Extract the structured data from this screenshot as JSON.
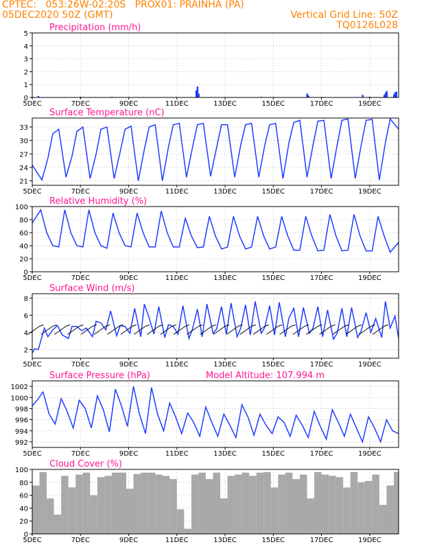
{
  "header": {
    "line1_left": "CPTEC:   053:26W-02:20S   PROX01: PRAINHA (PA)",
    "line2_left": "05DEC2020 50Z (GMT)",
    "line2_right": "Vertical Grid Line: 50Z",
    "line3_right": "TQ0126L028"
  },
  "colors": {
    "header": "#ff8000",
    "title": "#ff1493",
    "series": "#1e3cff",
    "wind_barb": "#000000",
    "cloud": "#a9a9a9"
  },
  "x_axis": {
    "ticks": [
      "5DEC",
      "7DEC",
      "9DEC",
      "11DEC",
      "13DEC",
      "15DEC",
      "17DEC",
      "19DEC"
    ],
    "tick_days": [
      0,
      2,
      4,
      6,
      8,
      10,
      12,
      14
    ],
    "range_days": [
      0,
      15.2
    ]
  },
  "chart_data": [
    {
      "type": "bar",
      "title": "Precipitation (mm/h)",
      "ylim": [
        0,
        5
      ],
      "yticks": [
        "0",
        "1",
        "2",
        "3",
        "4",
        "5"
      ],
      "grid": true,
      "x_days": [
        0.25,
        2.0,
        3.3,
        6.8,
        6.85,
        6.9,
        9.5,
        11.4,
        11.45,
        13.7,
        14.0,
        14.6,
        14.65,
        14.7,
        15.0,
        15.05,
        15.1
      ],
      "values": [
        0.1,
        0.05,
        0.05,
        0.55,
        0.85,
        0.3,
        0.05,
        0.3,
        0.15,
        0.2,
        0.05,
        0.2,
        0.35,
        0.5,
        0.25,
        0.4,
        0.45
      ]
    },
    {
      "type": "line",
      "title": "Surface Temperature (nC)",
      "ylim": [
        20,
        35
      ],
      "yticks": [
        "21",
        "24",
        "27",
        "30",
        "33"
      ],
      "grid": true,
      "series": [
        {
          "x_days": [
            0,
            0.4,
            0.65,
            0.85,
            1.1,
            1.4,
            1.65,
            1.85,
            2.1,
            2.4,
            2.65,
            2.85,
            3.1,
            3.4,
            3.65,
            3.85,
            4.1,
            4.4,
            4.65,
            4.85,
            5.1,
            5.4,
            5.65,
            5.85,
            6.1,
            6.4,
            6.65,
            6.85,
            7.1,
            7.4,
            7.65,
            7.85,
            8.1,
            8.4,
            8.65,
            8.85,
            9.1,
            9.4,
            9.65,
            9.85,
            10.1,
            10.4,
            10.65,
            10.85,
            11.1,
            11.4,
            11.65,
            11.85,
            12.1,
            12.4,
            12.65,
            12.85,
            13.1,
            13.4,
            13.65,
            13.85,
            14.1,
            14.4,
            14.65,
            14.85,
            15.2
          ],
          "values": [
            24.5,
            21.2,
            26.0,
            31.5,
            32.5,
            21.8,
            26.5,
            32.0,
            33.0,
            21.5,
            27.0,
            32.5,
            33.0,
            21.5,
            27.5,
            32.5,
            33.2,
            21.0,
            28.0,
            33.0,
            33.5,
            21.0,
            28.5,
            33.5,
            33.8,
            21.8,
            28.5,
            33.5,
            33.8,
            22.0,
            28.5,
            33.5,
            33.5,
            21.8,
            29.0,
            33.5,
            33.8,
            21.8,
            29.0,
            33.5,
            33.8,
            21.5,
            29.5,
            34.0,
            34.5,
            21.8,
            29.0,
            34.3,
            34.5,
            21.5,
            29.0,
            34.5,
            34.8,
            21.5,
            29.0,
            34.5,
            34.7,
            21.2,
            29.5,
            34.8,
            32.5
          ]
        }
      ]
    },
    {
      "type": "line",
      "title": "Relative Humidity (%)",
      "ylim": [
        0,
        100
      ],
      "yticks": [
        "0",
        "20",
        "40",
        "60",
        "80",
        "100"
      ],
      "grid": true,
      "series": [
        {
          "x_days": [
            0,
            0.35,
            0.6,
            0.85,
            1.1,
            1.35,
            1.6,
            1.85,
            2.1,
            2.35,
            2.6,
            2.85,
            3.1,
            3.35,
            3.6,
            3.85,
            4.1,
            4.35,
            4.6,
            4.85,
            5.1,
            5.35,
            5.6,
            5.85,
            6.1,
            6.35,
            6.6,
            6.85,
            7.1,
            7.35,
            7.6,
            7.85,
            8.1,
            8.35,
            8.6,
            8.85,
            9.1,
            9.35,
            9.6,
            9.85,
            10.1,
            10.35,
            10.6,
            10.85,
            11.1,
            11.35,
            11.6,
            11.85,
            12.1,
            12.35,
            12.6,
            12.85,
            13.1,
            13.35,
            13.6,
            13.85,
            14.1,
            14.35,
            14.6,
            14.85,
            15.2
          ],
          "values": [
            75,
            95,
            60,
            40,
            38,
            95,
            60,
            40,
            38,
            95,
            60,
            40,
            36,
            90,
            60,
            40,
            38,
            90,
            60,
            38,
            38,
            93,
            60,
            38,
            38,
            82,
            55,
            37,
            38,
            85,
            55,
            35,
            38,
            85,
            55,
            35,
            38,
            85,
            55,
            35,
            38,
            85,
            55,
            33,
            33,
            85,
            55,
            32,
            33,
            88,
            55,
            32,
            33,
            88,
            55,
            32,
            32,
            85,
            55,
            30,
            45
          ]
        }
      ]
    },
    {
      "type": "line",
      "title": "Surface Wind (m/s)",
      "ylim": [
        1,
        8.5
      ],
      "yticks": [
        "2",
        "4",
        "6",
        "8"
      ],
      "grid": true,
      "wind_barbs": true,
      "series": [
        {
          "x_days": [
            0,
            0.1,
            0.25,
            0.5,
            0.65,
            0.85,
            1.05,
            1.25,
            1.5,
            1.65,
            1.85,
            2.05,
            2.25,
            2.5,
            2.65,
            2.85,
            3.05,
            3.25,
            3.5,
            3.65,
            3.85,
            4.05,
            4.25,
            4.5,
            4.65,
            4.85,
            5.05,
            5.25,
            5.5,
            5.65,
            5.85,
            6.05,
            6.25,
            6.5,
            6.65,
            6.85,
            7.05,
            7.25,
            7.5,
            7.65,
            7.85,
            8.05,
            8.25,
            8.5,
            8.65,
            8.85,
            9.05,
            9.25,
            9.5,
            9.65,
            9.85,
            10.05,
            10.25,
            10.5,
            10.65,
            10.85,
            11.05,
            11.25,
            11.5,
            11.65,
            11.85,
            12.05,
            12.25,
            12.5,
            12.65,
            12.85,
            13.05,
            13.25,
            13.5,
            13.65,
            13.85,
            14.05,
            14.25,
            14.5,
            14.65,
            14.85,
            15.05,
            15.2
          ],
          "values": [
            1.6,
            2.1,
            2.0,
            4.5,
            3.5,
            4.3,
            4.8,
            3.7,
            3.3,
            4.7,
            4.7,
            4.2,
            4.5,
            3.5,
            5.3,
            5.1,
            4.3,
            6.5,
            3.6,
            4.8,
            4.7,
            3.9,
            6.8,
            3.5,
            7.3,
            5.7,
            3.8,
            7.0,
            3.4,
            4.9,
            4.7,
            3.8,
            7.1,
            3.3,
            4.4,
            6.7,
            3.5,
            7.3,
            3.9,
            4.4,
            7.0,
            3.8,
            7.4,
            3.5,
            4.5,
            7.2,
            3.7,
            7.6,
            3.9,
            4.6,
            7.1,
            3.7,
            7.5,
            3.5,
            5.7,
            6.8,
            3.5,
            6.9,
            3.9,
            4.5,
            7.0,
            3.5,
            6.6,
            3.2,
            3.9,
            6.8,
            3.5,
            6.9,
            3.4,
            4.2,
            6.3,
            4.0,
            5.6,
            3.4,
            7.6,
            4.5,
            5.9,
            3.3
          ]
        }
      ]
    },
    {
      "type": "line",
      "title": "Surface Pressure (hPa)",
      "annotation": "Model Altitude: 107.994 m",
      "ylim": [
        991,
        1003
      ],
      "yticks": [
        "992",
        "994",
        "996",
        "998",
        "1000",
        "1002"
      ],
      "grid": true,
      "series": [
        {
          "x_days": [
            0,
            0.2,
            0.45,
            0.7,
            0.95,
            1.2,
            1.45,
            1.7,
            1.95,
            2.2,
            2.45,
            2.7,
            2.95,
            3.2,
            3.45,
            3.7,
            3.95,
            4.2,
            4.45,
            4.7,
            4.95,
            5.2,
            5.45,
            5.7,
            5.95,
            6.2,
            6.45,
            6.7,
            6.95,
            7.2,
            7.45,
            7.7,
            7.95,
            8.2,
            8.45,
            8.7,
            8.95,
            9.2,
            9.45,
            9.7,
            9.95,
            10.2,
            10.45,
            10.7,
            10.95,
            11.2,
            11.45,
            11.7,
            11.95,
            12.2,
            12.45,
            12.7,
            12.95,
            13.2,
            13.45,
            13.7,
            13.95,
            14.2,
            14.45,
            14.7,
            14.95,
            15.2
          ],
          "values": [
            998.5,
            999.5,
            1001.0,
            997.0,
            995.2,
            999.8,
            997.5,
            994.5,
            999.5,
            998.0,
            994.5,
            1000.3,
            997.8,
            993.8,
            1001.5,
            998.5,
            994.8,
            1002.0,
            997.0,
            993.5,
            1001.8,
            997.0,
            994.0,
            999.0,
            996.5,
            993.5,
            997.2,
            995.5,
            993.0,
            998.3,
            995.5,
            993.0,
            997.0,
            995.0,
            992.8,
            998.7,
            996.5,
            993.2,
            997.0,
            995.0,
            993.5,
            996.5,
            995.5,
            993.0,
            996.8,
            995.0,
            992.8,
            997.5,
            994.8,
            992.5,
            997.8,
            995.5,
            993.0,
            997.0,
            994.5,
            992.0,
            996.5,
            994.5,
            992.0,
            996.0,
            994.0,
            993.5
          ]
        }
      ]
    },
    {
      "type": "area",
      "title": "Cloud Cover (%)",
      "ylim": [
        0,
        100
      ],
      "yticks": [
        "0",
        "20",
        "40",
        "60",
        "80",
        "100"
      ],
      "grid": true,
      "x_days": [
        0,
        0.3,
        0.6,
        0.9,
        1.2,
        1.5,
        1.8,
        2.1,
        2.4,
        2.7,
        3.0,
        3.3,
        3.6,
        3.9,
        4.2,
        4.5,
        4.8,
        5.1,
        5.4,
        5.7,
        6.0,
        6.3,
        6.6,
        6.9,
        7.2,
        7.5,
        7.8,
        8.1,
        8.4,
        8.7,
        9.0,
        9.3,
        9.6,
        9.9,
        10.2,
        10.5,
        10.8,
        11.1,
        11.4,
        11.7,
        12.0,
        12.3,
        12.6,
        12.9,
        13.2,
        13.5,
        13.8,
        14.1,
        14.4,
        14.7,
        15.0
      ],
      "values": [
        75,
        96,
        55,
        30,
        90,
        72,
        92,
        95,
        60,
        88,
        90,
        95,
        95,
        70,
        93,
        95,
        95,
        92,
        90,
        85,
        38,
        8,
        92,
        95,
        85,
        95,
        55,
        90,
        92,
        95,
        90,
        95,
        96,
        72,
        92,
        95,
        85,
        92,
        55,
        96,
        92,
        90,
        88,
        72,
        96,
        80,
        82,
        92,
        45,
        75,
        96
      ]
    }
  ]
}
